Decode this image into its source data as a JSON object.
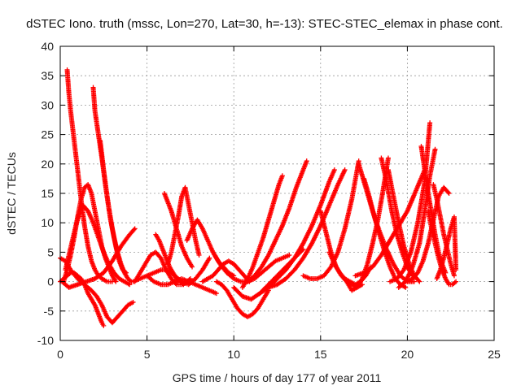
{
  "chart_data": {
    "type": "scatter",
    "title": "dSTEC Iono. truth (mssc, Lon=270, Lat=30, h=-13): STEC-STEC_elemax in phase cont.",
    "xlabel": "GPS time / hours of day 177 of year 2011",
    "ylabel": "dSTEC  / TECUs",
    "xlim": [
      0,
      25
    ],
    "ylim": [
      -10,
      40
    ],
    "xticks": [
      0,
      5,
      10,
      15,
      20,
      25
    ],
    "yticks": [
      -10,
      -5,
      0,
      5,
      10,
      15,
      20,
      25,
      30,
      35,
      40
    ],
    "grid": true,
    "marker": "+",
    "color": "#ff0000",
    "series": [
      {
        "x": [
          0.0,
          0.3,
          0.6,
          1.0,
          1.4,
          1.8,
          2.1,
          2.4,
          2.7,
          3.0,
          3.3,
          3.6,
          3.9,
          4.2
        ],
        "values": [
          4.0,
          3.5,
          2.0,
          0.5,
          -0.5,
          -1.5,
          -2.5,
          -4.0,
          -6.0,
          -7.0,
          -6.0,
          -5.0,
          -4.0,
          -3.5
        ]
      },
      {
        "x": [
          0.0,
          0.2,
          0.4,
          0.6,
          0.8,
          1.0,
          1.2,
          1.4,
          1.6,
          1.8,
          2.0,
          2.2,
          2.4,
          2.5
        ],
        "values": [
          0.0,
          0.5,
          1.0,
          1.5,
          1.5,
          1.0,
          0.5,
          -0.5,
          -2.0,
          -3.0,
          -4.0,
          -5.5,
          -7.0,
          -7.5
        ]
      },
      {
        "x": [
          0.4,
          0.5,
          0.6,
          0.8,
          1.0,
          1.2,
          1.4,
          1.6,
          1.8,
          2.0,
          2.2,
          2.4,
          2.7,
          3.0
        ],
        "values": [
          36.0,
          32.0,
          29.0,
          24.0,
          19.0,
          14.0,
          9.5,
          6.0,
          3.5,
          2.0,
          1.0,
          0.5,
          0.0,
          0.0
        ]
      },
      {
        "x": [
          0.2,
          0.4,
          0.6,
          0.8,
          1.0,
          1.2,
          1.4,
          1.6,
          1.8,
          2.0,
          2.2,
          2.4,
          2.6,
          2.8,
          3.0,
          3.2
        ],
        "values": [
          0.0,
          2.0,
          4.5,
          7.5,
          11.0,
          14.0,
          16.0,
          16.5,
          15.0,
          12.0,
          9.0,
          6.0,
          4.0,
          2.5,
          1.0,
          0.0
        ]
      },
      {
        "x": [
          0.3,
          0.5,
          0.7,
          0.9,
          1.1,
          1.3,
          1.6,
          1.9,
          2.2,
          2.5,
          2.8,
          3.1,
          3.4,
          3.7,
          4.0
        ],
        "values": [
          2.0,
          4.5,
          7.0,
          9.5,
          11.5,
          13.0,
          12.0,
          10.0,
          7.5,
          5.0,
          3.0,
          1.5,
          0.5,
          0.0,
          -0.5
        ]
      },
      {
        "x": [
          1.9,
          2.0,
          2.2,
          2.4,
          2.6,
          2.8,
          3.0,
          3.2,
          3.4,
          3.6,
          3.8
        ],
        "values": [
          33.0,
          29.0,
          25.0,
          21.0,
          16.5,
          12.5,
          9.0,
          6.0,
          3.5,
          2.0,
          1.5
        ]
      },
      {
        "x": [
          2.3,
          2.5,
          2.7,
          2.9,
          3.1,
          3.3,
          3.5,
          3.7,
          3.9,
          4.1
        ],
        "values": [
          24.0,
          19.0,
          14.5,
          10.5,
          7.5,
          5.0,
          3.0,
          1.5,
          0.5,
          0.0
        ]
      },
      {
        "x": [
          0.1,
          0.5,
          1.0,
          1.5,
          2.0,
          2.5,
          3.0,
          3.5,
          4.0,
          4.3
        ],
        "values": [
          0.0,
          -1.0,
          -0.5,
          0.0,
          0.5,
          1.5,
          3.5,
          6.0,
          8.0,
          9.0
        ]
      },
      {
        "x": [
          4.3,
          4.6,
          4.9,
          5.2,
          5.5,
          5.8,
          6.1,
          6.4,
          6.7,
          7.0,
          7.3
        ],
        "values": [
          0.0,
          1.5,
          3.0,
          4.5,
          5.0,
          4.0,
          2.0,
          0.5,
          -0.5,
          -0.5,
          0.0
        ]
      },
      {
        "x": [
          4.2,
          4.6,
          5.0,
          5.4,
          5.8,
          6.2,
          6.6,
          7.0,
          7.4,
          7.8,
          8.2,
          8.6
        ],
        "values": [
          0.0,
          0.5,
          1.0,
          1.5,
          2.0,
          2.0,
          1.0,
          0.0,
          -0.5,
          0.5,
          2.0,
          4.0
        ]
      },
      {
        "x": [
          5.0,
          5.4,
          5.8,
          6.2,
          6.6,
          7.0,
          7.4,
          7.8,
          8.2,
          8.6,
          9.0
        ],
        "values": [
          1.0,
          0.0,
          -0.5,
          -0.5,
          0.0,
          0.5,
          0.0,
          -0.5,
          -1.0,
          -1.5,
          -2.0
        ]
      },
      {
        "x": [
          5.5,
          5.7,
          5.9,
          6.1,
          6.3,
          6.5,
          6.7,
          6.9,
          7.1,
          7.3,
          7.5
        ],
        "values": [
          8.0,
          7.0,
          5.5,
          4.0,
          2.5,
          1.5,
          0.5,
          0.0,
          -0.5,
          0.0,
          0.5
        ]
      },
      {
        "x": [
          6.0,
          6.2,
          6.4,
          6.6,
          6.8,
          7.0,
          7.3,
          7.6
        ],
        "values": [
          15.0,
          13.5,
          12.0,
          10.0,
          8.0,
          6.0,
          4.0,
          2.5
        ]
      },
      {
        "x": [
          6.2,
          6.4,
          6.6,
          6.8,
          7.0,
          7.2,
          7.4,
          7.6,
          7.8,
          8.0
        ],
        "values": [
          3.0,
          5.0,
          8.0,
          11.0,
          14.5,
          16.0,
          13.0,
          10.0,
          7.0,
          4.5
        ]
      },
      {
        "x": [
          7.3,
          7.6,
          7.9,
          8.2,
          8.5,
          8.8,
          9.1,
          9.4,
          9.7,
          10.0
        ],
        "values": [
          7.0,
          9.0,
          10.5,
          9.0,
          7.0,
          5.0,
          3.5,
          2.5,
          1.5,
          1.0
        ]
      },
      {
        "x": [
          8.2,
          8.5,
          8.8,
          9.1,
          9.4,
          9.7,
          10.0,
          10.3,
          10.6,
          10.9
        ],
        "values": [
          0.0,
          0.5,
          1.0,
          2.0,
          3.0,
          3.5,
          3.0,
          2.0,
          1.0,
          0.0
        ]
      },
      {
        "x": [
          9.0,
          9.3,
          9.6,
          9.9,
          10.2,
          10.5,
          10.8,
          11.1,
          11.4,
          11.7,
          12.0
        ],
        "values": [
          0.0,
          -0.5,
          -1.5,
          -3.0,
          -4.5,
          -5.5,
          -6.0,
          -5.5,
          -4.5,
          -3.0,
          -1.5
        ]
      },
      {
        "x": [
          8.8,
          9.2,
          9.6,
          10.0,
          10.4,
          10.8,
          11.2,
          11.6,
          12.0,
          12.4,
          12.8,
          13.2
        ],
        "values": [
          5.0,
          3.0,
          1.5,
          0.5,
          0.0,
          0.0,
          0.5,
          1.5,
          2.5,
          3.5,
          4.0,
          4.5
        ]
      },
      {
        "x": [
          10.5,
          10.8,
          11.1,
          11.4,
          11.7,
          12.0,
          12.3,
          12.6,
          12.8
        ],
        "values": [
          -1.0,
          0.5,
          2.5,
          5.0,
          7.5,
          10.5,
          13.5,
          16.5,
          18.0
        ]
      },
      {
        "x": [
          10.8,
          11.2,
          11.6,
          12.0,
          12.4,
          12.8,
          13.2,
          13.6,
          14.0,
          14.2
        ],
        "values": [
          0.0,
          1.0,
          2.5,
          4.5,
          7.0,
          9.5,
          12.5,
          16.0,
          19.0,
          20.5
        ]
      },
      {
        "x": [
          10.0,
          10.5,
          11.0,
          11.5,
          12.0,
          12.5,
          13.0,
          13.5,
          14.0
        ],
        "values": [
          -1.0,
          -2.5,
          -3.0,
          -2.0,
          -0.5,
          1.0,
          2.5,
          4.0,
          5.5
        ]
      },
      {
        "x": [
          11.5,
          12.0,
          12.5,
          13.0,
          13.5,
          14.0,
          14.5,
          15.0,
          15.5,
          15.8
        ],
        "values": [
          -2.0,
          -1.0,
          0.5,
          2.0,
          4.0,
          6.5,
          9.5,
          13.0,
          17.0,
          19.0
        ]
      },
      {
        "x": [
          12.0,
          12.5,
          13.0,
          13.5,
          14.0,
          14.5,
          15.0,
          15.5,
          16.0,
          16.4
        ],
        "values": [
          -1.0,
          -0.5,
          0.5,
          2.0,
          4.0,
          6.5,
          9.5,
          13.0,
          16.5,
          19.0
        ]
      },
      {
        "x": [
          14.0,
          14.4,
          14.8,
          15.2,
          15.6,
          16.0,
          16.4,
          16.8,
          17.2
        ],
        "values": [
          1.0,
          0.5,
          0.5,
          1.0,
          2.5,
          5.0,
          9.0,
          14.0,
          20.5
        ]
      },
      {
        "x": [
          15.0,
          15.3,
          15.6,
          15.9,
          16.2,
          16.5,
          16.8,
          17.1,
          17.4
        ],
        "values": [
          12.0,
          8.5,
          5.0,
          2.5,
          1.0,
          0.0,
          -0.5,
          -1.0,
          -0.5
        ]
      },
      {
        "x": [
          15.5,
          15.8,
          16.1,
          16.4,
          16.7,
          17.0,
          17.3,
          17.6,
          17.9
        ],
        "values": [
          5.0,
          3.0,
          1.5,
          0.5,
          0.0,
          -0.5,
          0.0,
          1.0,
          2.5
        ]
      },
      {
        "x": [
          16.5,
          16.8,
          17.1,
          17.4,
          17.7,
          18.0,
          18.3,
          18.6,
          18.9
        ],
        "values": [
          0.0,
          -1.5,
          -1.0,
          0.5,
          3.0,
          6.5,
          10.5,
          15.5,
          21.0
        ]
      },
      {
        "x": [
          17.2,
          17.6,
          18.0,
          18.4,
          18.8,
          19.2,
          19.6,
          20.0,
          20.4
        ],
        "values": [
          20.0,
          16.0,
          12.0,
          8.5,
          5.5,
          3.0,
          1.0,
          0.0,
          0.0
        ]
      },
      {
        "x": [
          17.5,
          17.8,
          18.1,
          18.4,
          18.7,
          19.0,
          19.3,
          19.6,
          19.9
        ],
        "values": [
          17.5,
          14.5,
          11.0,
          8.0,
          5.0,
          2.5,
          0.5,
          -0.5,
          -1.0
        ]
      },
      {
        "x": [
          17.0,
          17.5,
          18.0,
          18.5,
          19.0,
          19.5,
          20.0,
          20.5,
          21.0
        ],
        "values": [
          1.0,
          1.5,
          2.5,
          4.5,
          7.0,
          9.5,
          12.0,
          15.5,
          19.0
        ]
      },
      {
        "x": [
          18.5,
          18.8,
          19.1,
          19.4,
          19.7,
          20.0,
          20.3
        ],
        "values": [
          21.0,
          17.0,
          12.0,
          8.0,
          5.0,
          2.5,
          1.0
        ]
      },
      {
        "x": [
          18.9,
          19.2,
          19.5,
          19.8,
          20.1,
          20.4,
          20.7
        ],
        "values": [
          19.0,
          14.5,
          10.0,
          6.0,
          3.0,
          1.0,
          0.0
        ]
      },
      {
        "x": [
          19.0,
          19.4,
          19.8,
          20.2,
          20.6,
          21.0,
          21.3
        ],
        "values": [
          0.0,
          0.5,
          2.0,
          5.0,
          10.0,
          17.0,
          27.0
        ]
      },
      {
        "x": [
          19.5,
          19.9,
          20.3,
          20.7,
          21.0,
          21.3,
          21.6
        ],
        "values": [
          -1.0,
          0.0,
          2.5,
          6.5,
          12.0,
          18.0,
          22.5
        ]
      },
      {
        "x": [
          20.8,
          21.0,
          21.2,
          21.4,
          21.6,
          21.8,
          22.0,
          22.2
        ],
        "values": [
          23.0,
          19.0,
          15.0,
          11.5,
          8.0,
          5.0,
          3.0,
          1.5
        ]
      },
      {
        "x": [
          21.2,
          21.4,
          21.6,
          21.8,
          22.0,
          22.2,
          22.4,
          22.6,
          22.8
        ],
        "values": [
          12.0,
          9.0,
          6.5,
          4.0,
          2.0,
          0.5,
          -0.5,
          -0.5,
          0.0
        ]
      },
      {
        "x": [
          20.0,
          20.3,
          20.6,
          20.9,
          21.2,
          21.5,
          21.8,
          22.1,
          22.4
        ],
        "values": [
          0.0,
          0.5,
          1.5,
          3.5,
          6.5,
          10.5,
          14.5,
          16.0,
          15.0
        ]
      },
      {
        "x": [
          21.5,
          21.7,
          21.9,
          22.1,
          22.3,
          22.5,
          22.7
        ],
        "values": [
          16.5,
          14.0,
          11.0,
          8.0,
          5.5,
          3.0,
          1.0
        ]
      },
      {
        "x": [
          21.7,
          21.9,
          22.1,
          22.3,
          22.5,
          22.7,
          22.8
        ],
        "values": [
          0.5,
          2.0,
          4.0,
          6.5,
          9.0,
          11.0,
          2.0
        ]
      }
    ]
  }
}
